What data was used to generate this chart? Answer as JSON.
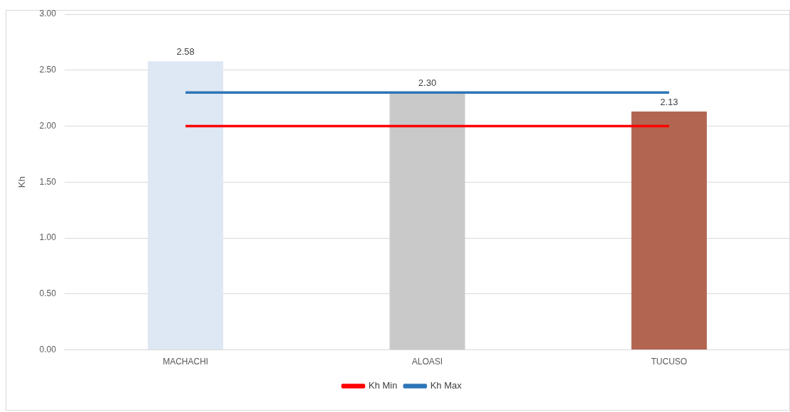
{
  "chart_data": {
    "type": "bar",
    "ylabel": "Kh",
    "categories": [
      "MACHACHI",
      "ALOASI",
      "TUCUSO"
    ],
    "series": [
      {
        "colors": [
          "#dde8f4",
          "#c9c9c9",
          "#b26651"
        ],
        "values": [
          2.58,
          2.3,
          2.13
        ],
        "value_labels": [
          "2.58",
          "2.30",
          "2.13"
        ]
      },
      {
        "type": "line",
        "name": "Kh Min",
        "color": "#ff0000",
        "values": [
          2.0,
          2.0,
          2.0
        ]
      },
      {
        "type": "line",
        "name": "Kh Max",
        "color": "#2e75b6",
        "values": [
          2.3,
          2.3,
          2.3
        ]
      }
    ],
    "ylim": [
      0,
      3
    ],
    "yticks": [
      {
        "value": 0,
        "label": "0.00"
      },
      {
        "value": 0.5,
        "label": "0.50"
      },
      {
        "value": 1,
        "label": "1.00"
      },
      {
        "value": 1.5,
        "label": "1.50"
      },
      {
        "value": 2,
        "label": "2.00"
      },
      {
        "value": 2.5,
        "label": "2.50"
      },
      {
        "value": 3,
        "label": "3.00"
      }
    ],
    "grid": "y",
    "legend": "bottom",
    "marker": "none",
    "line_style": "solid"
  }
}
